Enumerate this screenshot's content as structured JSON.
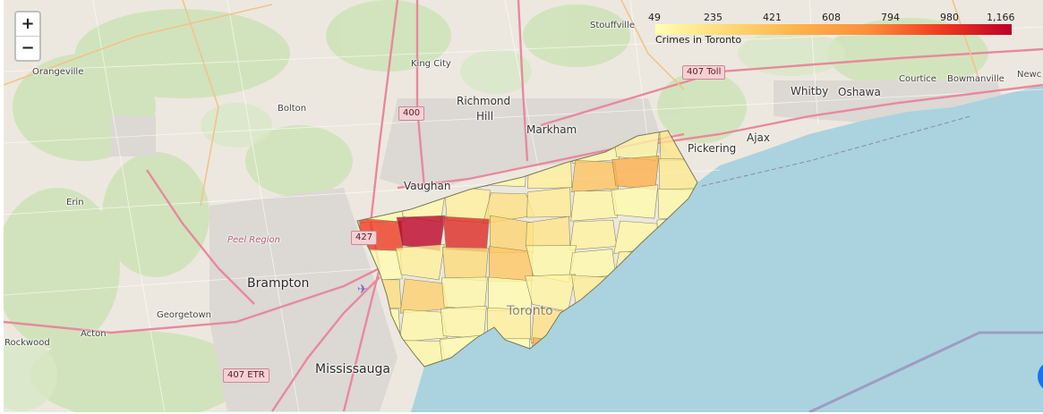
{
  "map": {
    "zoom_in_label": "+",
    "zoom_out_label": "−",
    "places": [
      {
        "name": "Orangeville",
        "size": "small"
      },
      {
        "name": "Bolton",
        "size": "small"
      },
      {
        "name": "King City",
        "size": "small"
      },
      {
        "name": "Stouffville",
        "size": "small"
      },
      {
        "name": "Richmond",
        "size": "mid"
      },
      {
        "name": "Hill",
        "size": "mid"
      },
      {
        "name": "Markham",
        "size": "mid"
      },
      {
        "name": "Whitby",
        "size": "mid"
      },
      {
        "name": "Oshawa",
        "size": "mid"
      },
      {
        "name": "Courtice",
        "size": "small"
      },
      {
        "name": "Bowmanville",
        "size": "small"
      },
      {
        "name": "Newc",
        "size": "small"
      },
      {
        "name": "Pickering",
        "size": "mid"
      },
      {
        "name": "Ajax",
        "size": "mid"
      },
      {
        "name": "Vaughan",
        "size": "mid"
      },
      {
        "name": "Erin",
        "size": "small"
      },
      {
        "name": "Peel Region",
        "size": "region"
      },
      {
        "name": "Brampton",
        "size": "big"
      },
      {
        "name": "Georgetown",
        "size": "small"
      },
      {
        "name": "Acton",
        "size": "small"
      },
      {
        "name": "Rockwood",
        "size": "small"
      },
      {
        "name": "Mississauga",
        "size": "big"
      },
      {
        "name": "Toronto",
        "size": "big"
      }
    ],
    "shields": [
      "407 Toll",
      "400",
      "427",
      "407 ETR"
    ]
  },
  "legend": {
    "caption": "Crimes in Toronto",
    "ticks": [
      "49",
      "235",
      "421",
      "608",
      "794",
      "980",
      "1,166"
    ],
    "min": 49,
    "max": 1166,
    "colors": [
      "#ffffb2",
      "#fed976",
      "#feb24c",
      "#fd8d3c",
      "#f03b20",
      "#bd0026"
    ]
  },
  "choropleth": {
    "neighbourhood_counts": [
      60,
      85,
      120,
      150,
      95,
      70,
      110,
      200,
      310,
      55,
      75,
      90,
      140,
      400,
      520,
      180,
      65,
      80,
      130,
      230,
      160,
      100,
      72,
      88,
      950,
      1166,
      1020,
      300,
      210,
      125,
      98,
      66,
      58,
      140,
      260,
      380,
      92,
      78,
      115,
      170,
      245,
      330,
      84,
      62,
      105,
      155,
      190,
      275,
      71,
      83,
      96,
      134,
      220,
      460,
      680,
      145,
      118,
      90,
      64,
      52,
      500,
      420,
      250,
      175
    ]
  }
}
